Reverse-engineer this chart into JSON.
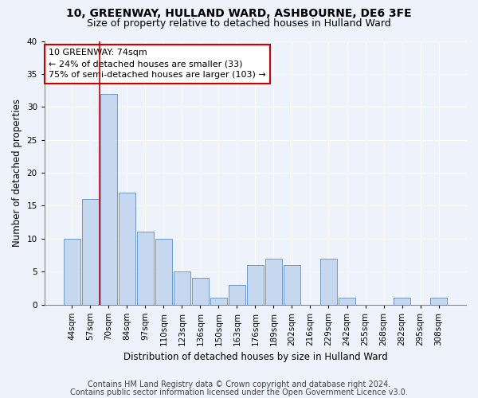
{
  "title1": "10, GREENWAY, HULLAND WARD, ASHBOURNE, DE6 3FE",
  "title2": "Size of property relative to detached houses in Hulland Ward",
  "xlabel": "Distribution of detached houses by size in Hulland Ward",
  "ylabel": "Number of detached properties",
  "categories": [
    "44sqm",
    "57sqm",
    "70sqm",
    "84sqm",
    "97sqm",
    "110sqm",
    "123sqm",
    "136sqm",
    "150sqm",
    "163sqm",
    "176sqm",
    "189sqm",
    "202sqm",
    "216sqm",
    "229sqm",
    "242sqm",
    "255sqm",
    "268sqm",
    "282sqm",
    "295sqm",
    "308sqm"
  ],
  "values": [
    10,
    16,
    32,
    17,
    11,
    10,
    5,
    4,
    1,
    3,
    6,
    7,
    6,
    0,
    7,
    1,
    0,
    0,
    1,
    0,
    1
  ],
  "bar_color": "#c5d8f0",
  "bar_edge_color": "#5b8ec4",
  "redline_x": 1.5,
  "annotation_text": "10 GREENWAY: 74sqm\n← 24% of detached houses are smaller (33)\n75% of semi-detached houses are larger (103) →",
  "annotation_box_color": "#ffffff",
  "annotation_box_edge_color": "#cc0000",
  "footnote1": "Contains HM Land Registry data © Crown copyright and database right 2024.",
  "footnote2": "Contains public sector information licensed under the Open Government Licence v3.0.",
  "ylim": [
    0,
    40
  ],
  "yticks": [
    0,
    5,
    10,
    15,
    20,
    25,
    30,
    35,
    40
  ],
  "background_color": "#eef2fb",
  "grid_color": "#ffffff",
  "title1_fontsize": 10,
  "title2_fontsize": 9,
  "xlabel_fontsize": 8.5,
  "ylabel_fontsize": 8.5,
  "tick_fontsize": 7.5,
  "annotation_fontsize": 8,
  "footnote_fontsize": 7
}
